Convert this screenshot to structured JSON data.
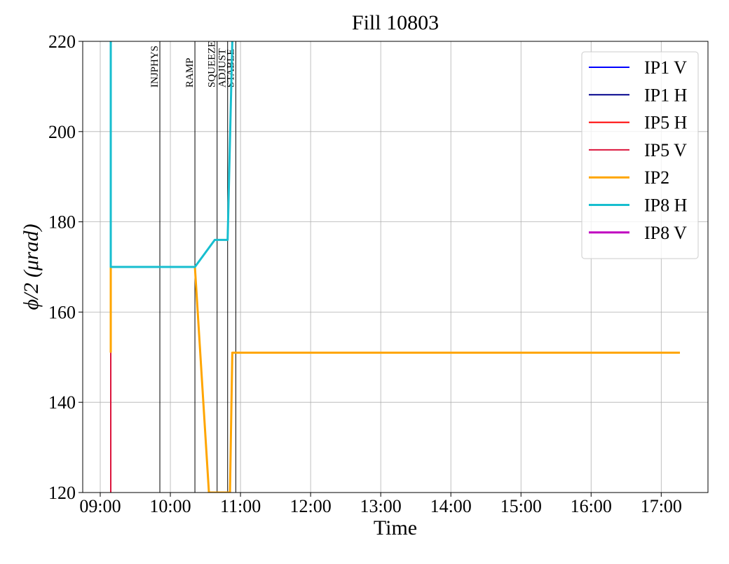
{
  "chart_data": {
    "type": "line",
    "title": "Fill 10803",
    "xlabel": "Time",
    "ylabel": "ϕ/2 (μrad)",
    "xlim": [
      "08:45",
      "17:40"
    ],
    "xticks": [
      "09:00",
      "10:00",
      "11:00",
      "12:00",
      "13:00",
      "14:00",
      "15:00",
      "16:00",
      "17:00"
    ],
    "ylim": [
      120,
      220
    ],
    "yticks": [
      120,
      140,
      160,
      180,
      200,
      220
    ],
    "grid": true,
    "legend": "upper right",
    "modes": [
      {
        "label": "INJPHYS",
        "x": "09:51"
      },
      {
        "label": "RAMP",
        "x": "10:21"
      },
      {
        "label": "SQUEEZE",
        "x": "10:40"
      },
      {
        "label": "ADJUST",
        "x": "10:49"
      },
      {
        "label": "STABLE",
        "x": "10:56"
      }
    ],
    "series": [
      {
        "name": "IP1 V",
        "color": "#0000ff",
        "width": 2,
        "x": [],
        "values": []
      },
      {
        "name": "IP1 H",
        "color": "#00008b",
        "width": 2,
        "x": [],
        "values": []
      },
      {
        "name": "IP5 H",
        "color": "#ff0000",
        "width": 2,
        "x": [
          "10:21",
          "10:33"
        ],
        "values": [
          170,
          120
        ]
      },
      {
        "name": "IP5 V",
        "color": "#dc143c",
        "width": 2,
        "x": [
          "09:09",
          "09:09"
        ],
        "values": [
          120,
          151
        ]
      },
      {
        "name": "IP2",
        "color": "#ffa500",
        "width": 3,
        "x": [
          "09:09",
          "09:09",
          "10:21",
          "10:33",
          "10:51",
          "10:53",
          "17:16"
        ],
        "values": [
          151,
          170,
          170,
          120,
          120,
          151,
          151
        ]
      },
      {
        "name": "IP8 H",
        "color": "#17becf",
        "width": 3,
        "x": [
          "09:09",
          "09:09",
          "10:21",
          "10:38",
          "10:49",
          "10:53"
        ],
        "values": [
          220,
          170,
          170,
          176,
          176,
          220
        ]
      },
      {
        "name": "IP8 V",
        "color": "#c000c0",
        "width": 3,
        "x": [],
        "values": []
      }
    ]
  }
}
